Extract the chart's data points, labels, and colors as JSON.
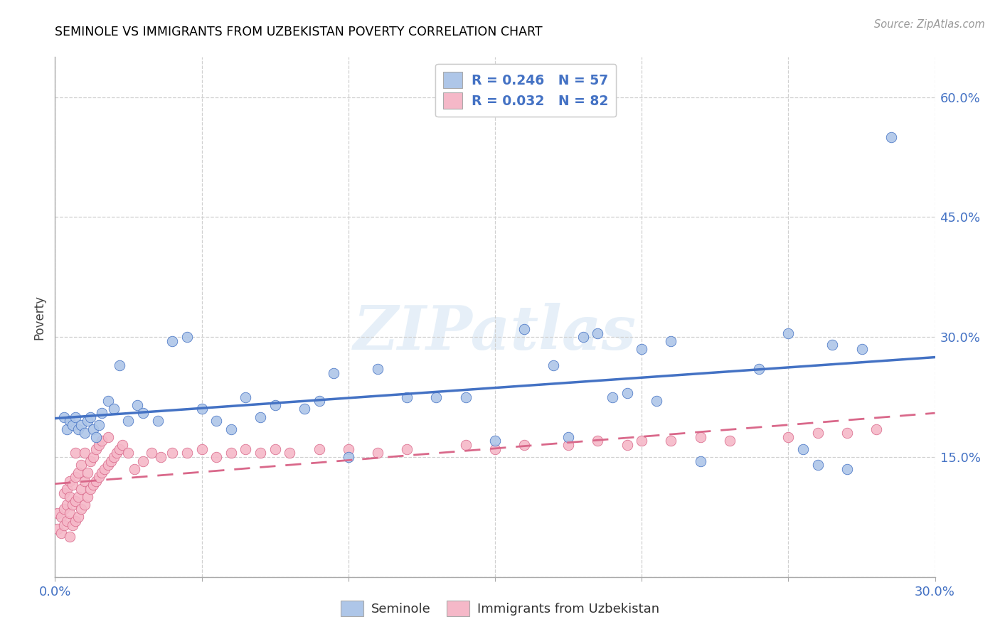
{
  "title": "SEMINOLE VS IMMIGRANTS FROM UZBEKISTAN POVERTY CORRELATION CHART",
  "source": "Source: ZipAtlas.com",
  "ylabel": "Poverty",
  "xlim": [
    0.0,
    0.3
  ],
  "ylim": [
    0.0,
    0.65
  ],
  "xticks": [
    0.0,
    0.05,
    0.1,
    0.15,
    0.2,
    0.25,
    0.3
  ],
  "xticklabels": [
    "0.0%",
    "",
    "",
    "",
    "",
    "",
    "30.0%"
  ],
  "yticks": [
    0.0,
    0.15,
    0.3,
    0.45,
    0.6
  ],
  "yticklabels": [
    "",
    "15.0%",
    "30.0%",
    "45.0%",
    "60.0%"
  ],
  "seminole_color": "#aec6e8",
  "uzbek_color": "#f5b8c8",
  "seminole_R": 0.246,
  "seminole_N": 57,
  "uzbek_R": 0.032,
  "uzbek_N": 82,
  "seminole_line_color": "#4472c4",
  "uzbek_line_color": "#d9688a",
  "legend_label_blue": "Seminole",
  "legend_label_pink": "Immigrants from Uzbekistan",
  "watermark": "ZIPatlas",
  "grid_color": "#d0d0d0",
  "seminole_x": [
    0.003,
    0.004,
    0.005,
    0.006,
    0.007,
    0.008,
    0.009,
    0.01,
    0.011,
    0.012,
    0.013,
    0.014,
    0.015,
    0.016,
    0.018,
    0.02,
    0.022,
    0.025,
    0.028,
    0.03,
    0.035,
    0.04,
    0.045,
    0.05,
    0.055,
    0.06,
    0.065,
    0.07,
    0.075,
    0.085,
    0.09,
    0.095,
    0.1,
    0.11,
    0.12,
    0.13,
    0.14,
    0.15,
    0.16,
    0.17,
    0.175,
    0.18,
    0.185,
    0.19,
    0.195,
    0.2,
    0.205,
    0.21,
    0.22,
    0.24,
    0.25,
    0.255,
    0.26,
    0.265,
    0.27,
    0.275,
    0.285
  ],
  "seminole_y": [
    0.2,
    0.185,
    0.195,
    0.19,
    0.2,
    0.185,
    0.19,
    0.18,
    0.195,
    0.2,
    0.185,
    0.175,
    0.19,
    0.205,
    0.22,
    0.21,
    0.265,
    0.195,
    0.215,
    0.205,
    0.195,
    0.295,
    0.3,
    0.21,
    0.195,
    0.185,
    0.225,
    0.2,
    0.215,
    0.21,
    0.22,
    0.255,
    0.15,
    0.26,
    0.225,
    0.225,
    0.225,
    0.17,
    0.31,
    0.265,
    0.175,
    0.3,
    0.305,
    0.225,
    0.23,
    0.285,
    0.22,
    0.295,
    0.145,
    0.26,
    0.305,
    0.16,
    0.14,
    0.29,
    0.135,
    0.285,
    0.55
  ],
  "uzbek_x": [
    0.001,
    0.001,
    0.002,
    0.002,
    0.003,
    0.003,
    0.003,
    0.004,
    0.004,
    0.004,
    0.005,
    0.005,
    0.005,
    0.005,
    0.006,
    0.006,
    0.006,
    0.007,
    0.007,
    0.007,
    0.007,
    0.008,
    0.008,
    0.008,
    0.009,
    0.009,
    0.009,
    0.01,
    0.01,
    0.01,
    0.011,
    0.011,
    0.012,
    0.012,
    0.013,
    0.013,
    0.014,
    0.014,
    0.015,
    0.015,
    0.016,
    0.016,
    0.017,
    0.018,
    0.018,
    0.019,
    0.02,
    0.021,
    0.022,
    0.023,
    0.025,
    0.027,
    0.03,
    0.033,
    0.036,
    0.04,
    0.045,
    0.05,
    0.055,
    0.06,
    0.065,
    0.07,
    0.075,
    0.08,
    0.09,
    0.1,
    0.11,
    0.12,
    0.14,
    0.15,
    0.16,
    0.175,
    0.185,
    0.195,
    0.2,
    0.21,
    0.22,
    0.23,
    0.25,
    0.26,
    0.27,
    0.28
  ],
  "uzbek_y": [
    0.06,
    0.08,
    0.055,
    0.075,
    0.065,
    0.085,
    0.105,
    0.07,
    0.09,
    0.11,
    0.05,
    0.08,
    0.1,
    0.12,
    0.065,
    0.09,
    0.115,
    0.07,
    0.095,
    0.125,
    0.155,
    0.075,
    0.1,
    0.13,
    0.085,
    0.11,
    0.14,
    0.09,
    0.12,
    0.155,
    0.1,
    0.13,
    0.11,
    0.145,
    0.115,
    0.15,
    0.12,
    0.16,
    0.125,
    0.165,
    0.13,
    0.17,
    0.135,
    0.14,
    0.175,
    0.145,
    0.15,
    0.155,
    0.16,
    0.165,
    0.155,
    0.135,
    0.145,
    0.155,
    0.15,
    0.155,
    0.155,
    0.16,
    0.15,
    0.155,
    0.16,
    0.155,
    0.16,
    0.155,
    0.16,
    0.16,
    0.155,
    0.16,
    0.165,
    0.16,
    0.165,
    0.165,
    0.17,
    0.165,
    0.17,
    0.17,
    0.175,
    0.17,
    0.175,
    0.18,
    0.18,
    0.185
  ]
}
